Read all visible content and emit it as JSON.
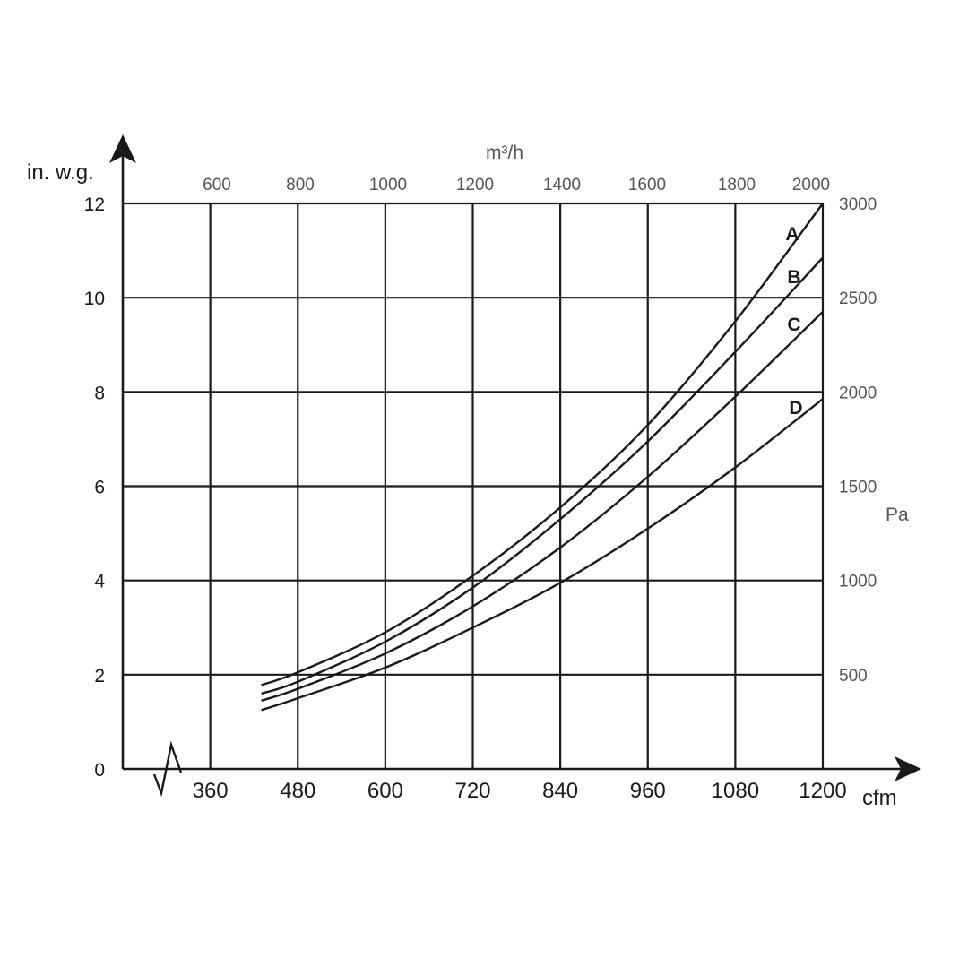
{
  "chart_data": {
    "type": "line",
    "x_axis": {
      "label": "cfm",
      "ticks": [
        "360",
        "480",
        "600",
        "720",
        "840",
        "960",
        "1080",
        "1200"
      ],
      "range": [
        240,
        1200
      ]
    },
    "x2_axis": {
      "label": "m³/h",
      "ticks": [
        "600",
        "800",
        "1000",
        "1200",
        "1400",
        "1600",
        "1800",
        "2000"
      ]
    },
    "y_axis": {
      "label": "in. w.g.",
      "ticks": [
        "0",
        "2",
        "4",
        "6",
        "8",
        "10",
        "12"
      ],
      "range": [
        0,
        12
      ]
    },
    "y2_axis": {
      "label": "Pa",
      "ticks": [
        "500",
        "1000",
        "1500",
        "2000",
        "2500",
        "3000"
      ]
    },
    "grid": true,
    "series": [
      {
        "name": "A",
        "x": [
          430,
          480,
          600,
          720,
          840,
          960,
          1080,
          1200
        ],
        "y": [
          1.78,
          2.05,
          2.9,
          4.1,
          5.55,
          7.3,
          9.5,
          12.0
        ]
      },
      {
        "name": "B",
        "x": [
          430,
          480,
          600,
          720,
          840,
          960,
          1080,
          1200
        ],
        "y": [
          1.6,
          1.85,
          2.7,
          3.85,
          5.3,
          6.95,
          8.85,
          10.85
        ]
      },
      {
        "name": "C",
        "x": [
          430,
          480,
          600,
          720,
          840,
          960,
          1080,
          1200
        ],
        "y": [
          1.45,
          1.7,
          2.45,
          3.45,
          4.7,
          6.2,
          7.9,
          9.7
        ]
      },
      {
        "name": "D",
        "x": [
          430,
          480,
          600,
          720,
          840,
          960,
          1080,
          1200
        ],
        "y": [
          1.25,
          1.5,
          2.15,
          3.0,
          3.95,
          5.1,
          6.4,
          7.85
        ]
      }
    ]
  }
}
